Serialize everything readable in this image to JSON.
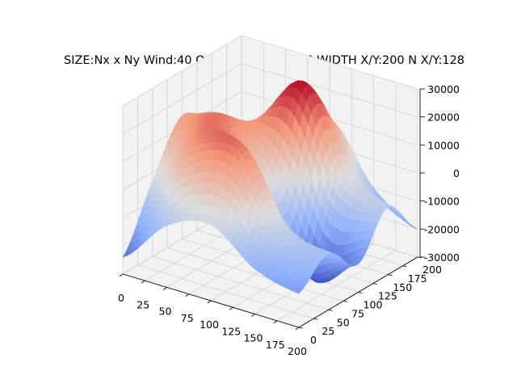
{
  "chart_data": {
    "type": "surface",
    "projection": "3d",
    "title": "SIZE:Nx x Ny Wind:40 Omega:0.84 Rand:6 WIDTH X/Y:200 N X/Y:128",
    "xlabel": "",
    "ylabel": "",
    "zlabel": "",
    "x_ticks": [
      "0",
      "25",
      "50",
      "75",
      "100",
      "125",
      "150",
      "175",
      "200"
    ],
    "y_ticks": [
      "0",
      "25",
      "50",
      "75",
      "100",
      "125",
      "150",
      "175",
      "200"
    ],
    "z_ticks": [
      "-30000",
      "-20000",
      "-10000",
      "0",
      "10000",
      "20000",
      "30000"
    ],
    "xlim": [
      0,
      200
    ],
    "ylim": [
      0,
      200
    ],
    "zlim": [
      -30000,
      30000
    ],
    "grid": true,
    "colormap": "coolwarm",
    "grid_resolution": [
      128,
      128
    ],
    "surface_samples": {
      "description_axes": "z(x,y) sampled on 5x5 grid, x rows 0..200, y cols 0..200",
      "x": [
        0,
        50,
        100,
        150,
        200
      ],
      "y": [
        0,
        50,
        100,
        150,
        200
      ],
      "z": [
        [
          -24000,
          -3000,
          14000,
          4000,
          -9000
        ],
        [
          -8000,
          16000,
          18000,
          8000,
          -4000
        ],
        [
          -3000,
          19000,
          0,
          29000,
          10000
        ],
        [
          -14000,
          -4000,
          -30000,
          0,
          -10000
        ],
        [
          -18000,
          -10000,
          -20000,
          -6000,
          -20000
        ]
      ]
    }
  },
  "colors": {
    "pane": "#f2f2f2",
    "grid": "#d0d0d0",
    "axis": "#000000",
    "cold": "#3b4cc0",
    "mid": "#dddddd",
    "warm": "#b40426"
  }
}
